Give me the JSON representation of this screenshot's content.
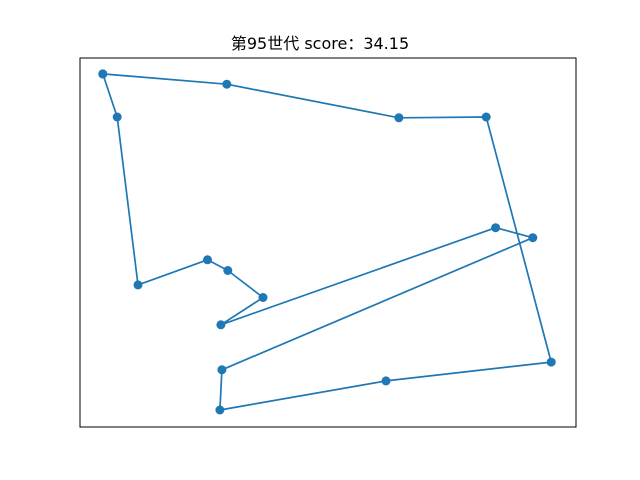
{
  "chart_data": {
    "type": "line",
    "title": "第95世代 score：34.15",
    "xlabel": "",
    "ylabel": "",
    "xlim": [
      0,
      100
    ],
    "ylim": [
      0,
      100
    ],
    "axes_ticks": "hidden",
    "grid": false,
    "series": [
      {
        "color": "#1f77b4",
        "marker": "circle",
        "points": [
          {
            "x": 4.6,
            "y": 95.7
          },
          {
            "x": 7.5,
            "y": 84.0
          },
          {
            "x": 11.7,
            "y": 38.5
          },
          {
            "x": 25.7,
            "y": 45.3
          },
          {
            "x": 29.8,
            "y": 42.4
          },
          {
            "x": 36.9,
            "y": 35.1
          },
          {
            "x": 28.4,
            "y": 27.7
          },
          {
            "x": 83.8,
            "y": 54.0
          },
          {
            "x": 91.3,
            "y": 51.3
          },
          {
            "x": 28.6,
            "y": 15.5
          },
          {
            "x": 28.2,
            "y": 4.6
          },
          {
            "x": 61.7,
            "y": 12.5
          },
          {
            "x": 95.0,
            "y": 17.6
          },
          {
            "x": 81.9,
            "y": 84.0
          },
          {
            "x": 64.3,
            "y": 83.8
          },
          {
            "x": 29.6,
            "y": 92.9
          },
          {
            "x": 4.6,
            "y": 95.7
          }
        ]
      }
    ]
  }
}
